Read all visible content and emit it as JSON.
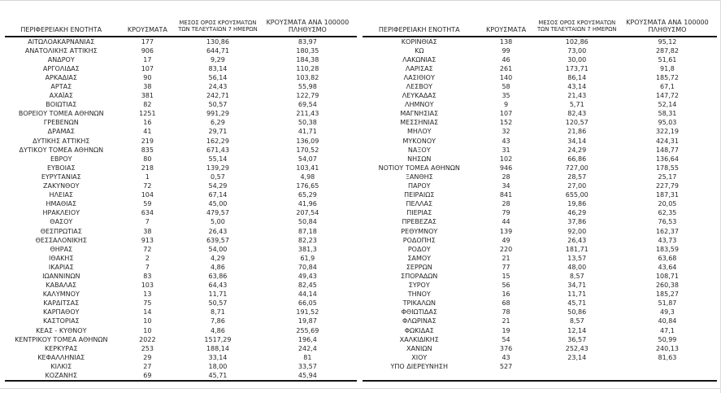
{
  "header": {
    "region": "ΠΕΡΙΦΕΡΕΙΑΚΗ ΕΝΟΤΗΤΑ",
    "cases": "ΚΡΟΥΣΜΑΤΑ",
    "avg7_line1": "ΜΕΣΟΣ ΟΡΟΣ ΚΡΟΥΣΜΑΤΩΝ",
    "avg7_line2": "ΤΩΝ ΤΕΛΕΥΤΑΙΩΝ 7 ΗΜΕΡΩΝ",
    "per100k_line1": "ΚΡΟΥΣΜΑΤΑ ΑΝΑ 100000",
    "per100k_line2": "ΠΛΗΘΥΣΜΟ"
  },
  "left_table": {
    "rows": [
      [
        "ΑΙΤΩΛΟΑΚΑΡΝΑΝΙΑΣ",
        "177",
        "130,86",
        "83,97"
      ],
      [
        "ΑΝΑΤΟΛΙΚΗΣ ΑΤΤΙΚΗΣ",
        "906",
        "644,71",
        "180,35"
      ],
      [
        "ΑΝΔΡΟΥ",
        "17",
        "9,29",
        "184,38"
      ],
      [
        "ΑΡΓΟΛΙΔΑΣ",
        "107",
        "83,14",
        "110,28"
      ],
      [
        "ΑΡΚΑΔΙΑΣ",
        "90",
        "56,14",
        "103,82"
      ],
      [
        "ΑΡΤΑΣ",
        "38",
        "24,43",
        "55,98"
      ],
      [
        "ΑΧΑΪΑΣ",
        "381",
        "242,71",
        "122,79"
      ],
      [
        "ΒΟΙΩΤΙΑΣ",
        "82",
        "50,57",
        "69,54"
      ],
      [
        "ΒΟΡΕΙΟΥ ΤΟΜΕΑ ΑΘΗΝΩΝ",
        "1251",
        "991,29",
        "211,43"
      ],
      [
        "ΓΡΕΒΕΝΩΝ",
        "16",
        "6,29",
        "50,38"
      ],
      [
        "ΔΡΑΜΑΣ",
        "41",
        "29,71",
        "41,71"
      ],
      [
        "ΔΥΤΙΚΗΣ ΑΤΤΙΚΗΣ",
        "219",
        "162,29",
        "136,09"
      ],
      [
        "ΔΥΤΙΚΟΥ ΤΟΜΕΑ ΑΘΗΝΩΝ",
        "835",
        "671,43",
        "170,52"
      ],
      [
        "ΕΒΡΟΥ",
        "80",
        "55,14",
        "54,07"
      ],
      [
        "ΕΥΒΟΙΑΣ",
        "218",
        "139,29",
        "103,41"
      ],
      [
        "ΕΥΡΥΤΑΝΙΑΣ",
        "1",
        "0,57",
        "4,98"
      ],
      [
        "ΖΑΚΥΝΘΟΥ",
        "72",
        "54,29",
        "176,65"
      ],
      [
        "ΗΛΕΙΑΣ",
        "104",
        "67,14",
        "65,29"
      ],
      [
        "ΗΜΑΘΙΑΣ",
        "59",
        "45,00",
        "41,96"
      ],
      [
        "ΗΡΑΚΛΕΙΟΥ",
        "634",
        "479,57",
        "207,54"
      ],
      [
        "ΘΑΣΟΥ",
        "7",
        "5,00",
        "50,84"
      ],
      [
        "ΘΕΣΠΡΩΤΙΑΣ",
        "38",
        "26,43",
        "87,18"
      ],
      [
        "ΘΕΣΣΑΛΟΝΙΚΗΣ",
        "913",
        "639,57",
        "82,23"
      ],
      [
        "ΘΗΡΑΣ",
        "72",
        "54,00",
        "381,3"
      ],
      [
        "ΙΘΑΚΗΣ",
        "2",
        "4,29",
        "61,9"
      ],
      [
        "ΙΚΑΡΙΑΣ",
        "7",
        "4,86",
        "70,84"
      ],
      [
        "ΙΩΑΝΝΙΝΩΝ",
        "83",
        "63,86",
        "49,43"
      ],
      [
        "ΚΑΒΑΛΑΣ",
        "103",
        "64,43",
        "82,45"
      ],
      [
        "ΚΑΛΥΜΝΟΥ",
        "13",
        "11,71",
        "44,14"
      ],
      [
        "ΚΑΡΔΙΤΣΑΣ",
        "75",
        "50,57",
        "66,05"
      ],
      [
        "ΚΑΡΠΑΘΟΥ",
        "14",
        "8,71",
        "191,52"
      ],
      [
        "ΚΑΣΤΟΡΙΑΣ",
        "10",
        "7,86",
        "19,87"
      ],
      [
        "ΚΕΑΣ - ΚΥΘΝΟΥ",
        "10",
        "4,86",
        "255,69"
      ],
      [
        "ΚΕΝΤΡΙΚΟΥ ΤΟΜΕΑ ΑΘΗΝΩΝ",
        "2022",
        "1517,29",
        "196,4"
      ],
      [
        "ΚΕΡΚΥΡΑΣ",
        "253",
        "188,14",
        "242,4"
      ],
      [
        "ΚΕΦΑΛΛΗΝΙΑΣ",
        "29",
        "33,14",
        "81"
      ],
      [
        "ΚΙΛΚΙΣ",
        "27",
        "18,00",
        "33,57"
      ],
      [
        "ΚΟΖΑΝΗΣ",
        "69",
        "45,71",
        "45,94"
      ]
    ]
  },
  "right_table": {
    "rows": [
      [
        "ΚΟΡΙΝΘΙΑΣ",
        "138",
        "102,86",
        "95,12"
      ],
      [
        "ΚΩ",
        "99",
        "73,00",
        "287,82"
      ],
      [
        "ΛΑΚΩΝΙΑΣ",
        "46",
        "30,00",
        "51,61"
      ],
      [
        "ΛΑΡΙΣΑΣ",
        "261",
        "173,71",
        "91,8"
      ],
      [
        "ΛΑΣΙΘΙΟΥ",
        "140",
        "86,14",
        "185,72"
      ],
      [
        "ΛΕΣΒΟΥ",
        "58",
        "43,14",
        "67,1"
      ],
      [
        "ΛΕΥΚΑΔΑΣ",
        "35",
        "21,43",
        "147,72"
      ],
      [
        "ΛΗΜΝΟΥ",
        "9",
        "5,71",
        "52,14"
      ],
      [
        "ΜΑΓΝΗΣΙΑΣ",
        "107",
        "82,43",
        "58,31"
      ],
      [
        "ΜΕΣΣΗΝΙΑΣ",
        "152",
        "120,57",
        "95,03"
      ],
      [
        "ΜΗΛΟΥ",
        "32",
        "21,86",
        "322,19"
      ],
      [
        "ΜΥΚΟΝΟΥ",
        "43",
        "34,14",
        "424,31"
      ],
      [
        "ΝΑΞΟΥ",
        "31",
        "24,29",
        "148,77"
      ],
      [
        "ΝΗΣΩΝ",
        "102",
        "66,86",
        "136,64"
      ],
      [
        "ΝΟΤΙΟΥ ΤΟΜΕΑ ΑΘΗΝΩΝ",
        "946",
        "727,00",
        "178,55"
      ],
      [
        "ΞΑΝΘΗΣ",
        "28",
        "28,57",
        "25,17"
      ],
      [
        "ΠΑΡΟΥ",
        "34",
        "27,00",
        "227,79"
      ],
      [
        "ΠΕΙΡΑΙΩΣ",
        "841",
        "655,00",
        "187,31"
      ],
      [
        "ΠΕΛΛΑΣ",
        "28",
        "19,86",
        "20,05"
      ],
      [
        "ΠΙΕΡΙΑΣ",
        "79",
        "46,29",
        "62,35"
      ],
      [
        "ΠΡΕΒΕΖΑΣ",
        "44",
        "37,86",
        "76,53"
      ],
      [
        "ΡΕΘΥΜΝΟΥ",
        "139",
        "92,00",
        "162,37"
      ],
      [
        "ΡΟΔΟΠΗΣ",
        "49",
        "26,43",
        "43,73"
      ],
      [
        "ΡΟΔΟΥ",
        "220",
        "181,71",
        "183,59"
      ],
      [
        "ΣΑΜΟΥ",
        "21",
        "13,57",
        "63,68"
      ],
      [
        "ΣΕΡΡΩΝ",
        "77",
        "48,00",
        "43,64"
      ],
      [
        "ΣΠΟΡΑΔΩΝ",
        "15",
        "8,57",
        "108,71"
      ],
      [
        "ΣΥΡΟΥ",
        "56",
        "34,71",
        "260,38"
      ],
      [
        "ΤΗΝΟΥ",
        "16",
        "11,71",
        "185,27"
      ],
      [
        "ΤΡΙΚΑΛΩΝ",
        "68",
        "45,71",
        "51,87"
      ],
      [
        "ΦΘΙΩΤΙΔΑΣ",
        "78",
        "50,86",
        "49,3"
      ],
      [
        "ΦΛΩΡΙΝΑΣ",
        "21",
        "8,57",
        "40,84"
      ],
      [
        "ΦΩΚΙΔΑΣ",
        "19",
        "12,14",
        "47,1"
      ],
      [
        "ΧΑΛΚΙΔΙΚΗΣ",
        "54",
        "36,57",
        "50,99"
      ],
      [
        "ΧΑΝΙΩΝ",
        "376",
        "252,43",
        "240,13"
      ],
      [
        "ΧΙΟΥ",
        "43",
        "23,14",
        "81,63"
      ],
      [
        "ΥΠΟ ΔΙΕΡΕΥΝΗΣΗ",
        "527",
        "",
        ""
      ]
    ]
  }
}
